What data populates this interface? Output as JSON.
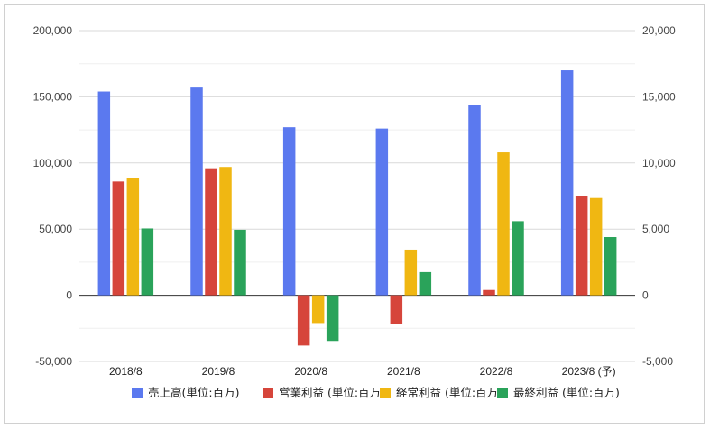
{
  "chart_data": {
    "type": "bar",
    "categories": [
      "2018/8",
      "2019/8",
      "2020/8",
      "2021/8",
      "2022/8",
      "2023/8 (予)"
    ],
    "series": [
      {
        "name": "売上高(単位:百万)",
        "axis": "left",
        "color": "#5b79ef",
        "values": [
          154000,
          157000,
          127000,
          126000,
          144000,
          170000
        ]
      },
      {
        "name": "営業利益 (単位:百万)",
        "axis": "right",
        "color": "#d6453b",
        "values": [
          8600,
          9600,
          -3800,
          -2200,
          400,
          7500
        ]
      },
      {
        "name": "経常利益 (単位:百万)",
        "axis": "right",
        "color": "#f0b712",
        "values": [
          8850,
          9700,
          -2100,
          3450,
          10800,
          7350
        ]
      },
      {
        "name": "最終利益 (単位:百万)",
        "axis": "right",
        "color": "#2aa35a",
        "values": [
          5050,
          4950,
          -3450,
          1750,
          5600,
          4400
        ]
      }
    ],
    "y_left": {
      "ylim": [
        -50000,
        200000
      ],
      "ticks": [
        -50000,
        0,
        50000,
        100000,
        150000,
        200000
      ],
      "tick_labels": [
        "-50,000",
        "0",
        "50,000",
        "100,000",
        "150,000",
        "200,000"
      ]
    },
    "y_right": {
      "ylim": [
        -5000,
        20000
      ],
      "ticks": [
        -5000,
        0,
        5000,
        10000,
        15000,
        20000
      ],
      "tick_labels": [
        "-5,000",
        "0",
        "5,000",
        "10,000",
        "15,000",
        "20,000"
      ]
    },
    "grid": true,
    "legend": "bottom"
  }
}
